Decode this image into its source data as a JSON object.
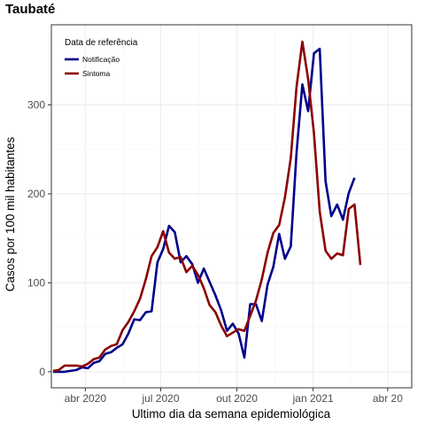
{
  "colors": {
    "notificacao": "#00008B",
    "sintoma": "#8B0000",
    "grid_major": "#EBEBEB",
    "grid_minor": "#F5F5F5",
    "panel_border": "#333333"
  },
  "chart_data": {
    "type": "line",
    "title": "Taubaté",
    "xlabel": "Ultimo dia da semana epidemiológica",
    "ylabel": "Casos por 100 mil habitantes",
    "x_range": [
      "2020-02-20",
      "2021-04-30"
    ],
    "ylim": [
      -18,
      390
    ],
    "grid": true,
    "x_ticks": [
      {
        "date": "2020-04-01",
        "label": "abr 2020"
      },
      {
        "date": "2020-07-01",
        "label": "jul 2020"
      },
      {
        "date": "2020-10-01",
        "label": "out 2020"
      },
      {
        "date": "2021-01-01",
        "label": "jan 2021"
      },
      {
        "date": "2021-04-01",
        "label": "abr 20"
      }
    ],
    "y_ticks": [
      0,
      100,
      200,
      300
    ],
    "legend": {
      "title": "Data de referência",
      "position": "top-left"
    },
    "series": [
      {
        "name": "Notificação",
        "color": "#00008B",
        "points": [
          [
            "2020-02-22",
            0
          ],
          [
            "2020-02-29",
            0
          ],
          [
            "2020-03-07",
            0
          ],
          [
            "2020-03-14",
            1
          ],
          [
            "2020-03-21",
            2
          ],
          [
            "2020-03-28",
            5
          ],
          [
            "2020-04-04",
            4
          ],
          [
            "2020-04-11",
            10
          ],
          [
            "2020-04-18",
            12
          ],
          [
            "2020-04-25",
            20
          ],
          [
            "2020-05-02",
            22
          ],
          [
            "2020-05-09",
            27
          ],
          [
            "2020-05-16",
            31
          ],
          [
            "2020-05-23",
            43
          ],
          [
            "2020-05-30",
            59
          ],
          [
            "2020-06-06",
            58
          ],
          [
            "2020-06-13",
            67
          ],
          [
            "2020-06-20",
            68
          ],
          [
            "2020-06-27",
            123
          ],
          [
            "2020-07-04",
            138
          ],
          [
            "2020-07-11",
            164
          ],
          [
            "2020-07-18",
            157
          ],
          [
            "2020-07-25",
            123
          ],
          [
            "2020-08-01",
            130
          ],
          [
            "2020-08-08",
            121
          ],
          [
            "2020-08-15",
            100
          ],
          [
            "2020-08-22",
            116
          ],
          [
            "2020-08-29",
            101
          ],
          [
            "2020-09-05",
            86
          ],
          [
            "2020-09-12",
            69
          ],
          [
            "2020-09-19",
            46
          ],
          [
            "2020-09-26",
            54
          ],
          [
            "2020-10-03",
            43
          ],
          [
            "2020-10-10",
            16
          ],
          [
            "2020-10-17",
            76
          ],
          [
            "2020-10-24",
            76
          ],
          [
            "2020-10-31",
            57
          ],
          [
            "2020-11-07",
            98
          ],
          [
            "2020-11-14",
            118
          ],
          [
            "2020-11-21",
            155
          ],
          [
            "2020-11-28",
            127
          ],
          [
            "2020-12-05",
            141
          ],
          [
            "2020-12-12",
            246
          ],
          [
            "2020-12-19",
            323
          ],
          [
            "2020-12-26",
            293
          ],
          [
            "2021-01-02",
            358
          ],
          [
            "2021-01-09",
            363
          ],
          [
            "2021-01-16",
            214
          ],
          [
            "2021-01-23",
            175
          ],
          [
            "2021-01-30",
            188
          ],
          [
            "2021-02-06",
            171
          ],
          [
            "2021-02-13",
            201
          ],
          [
            "2021-02-20",
            218
          ]
        ]
      },
      {
        "name": "Sintoma",
        "color": "#8B0000",
        "points": [
          [
            "2020-02-22",
            1
          ],
          [
            "2020-02-29",
            2
          ],
          [
            "2020-03-07",
            7
          ],
          [
            "2020-03-14",
            7
          ],
          [
            "2020-03-21",
            7
          ],
          [
            "2020-03-28",
            6
          ],
          [
            "2020-04-04",
            9
          ],
          [
            "2020-04-11",
            14
          ],
          [
            "2020-04-18",
            16
          ],
          [
            "2020-04-25",
            25
          ],
          [
            "2020-05-02",
            29
          ],
          [
            "2020-05-09",
            31
          ],
          [
            "2020-05-16",
            47
          ],
          [
            "2020-05-23",
            56
          ],
          [
            "2020-05-30",
            68
          ],
          [
            "2020-06-06",
            82
          ],
          [
            "2020-06-13",
            104
          ],
          [
            "2020-06-20",
            130
          ],
          [
            "2020-06-27",
            140
          ],
          [
            "2020-07-04",
            158
          ],
          [
            "2020-07-11",
            134
          ],
          [
            "2020-07-18",
            127
          ],
          [
            "2020-07-25",
            129
          ],
          [
            "2020-08-01",
            112
          ],
          [
            "2020-08-08",
            119
          ],
          [
            "2020-08-15",
            109
          ],
          [
            "2020-08-22",
            94
          ],
          [
            "2020-08-29",
            75
          ],
          [
            "2020-09-05",
            67
          ],
          [
            "2020-09-12",
            52
          ],
          [
            "2020-09-19",
            40
          ],
          [
            "2020-09-26",
            44
          ],
          [
            "2020-10-03",
            48
          ],
          [
            "2020-10-10",
            46
          ],
          [
            "2020-10-17",
            63
          ],
          [
            "2020-10-24",
            80
          ],
          [
            "2020-10-31",
            104
          ],
          [
            "2020-11-07",
            134
          ],
          [
            "2020-11-14",
            156
          ],
          [
            "2020-11-21",
            165
          ],
          [
            "2020-11-28",
            196
          ],
          [
            "2020-12-05",
            240
          ],
          [
            "2020-12-12",
            320
          ],
          [
            "2020-12-19",
            371
          ],
          [
            "2020-12-26",
            329
          ],
          [
            "2021-01-02",
            268
          ],
          [
            "2021-01-09",
            180
          ],
          [
            "2021-01-16",
            136
          ],
          [
            "2021-01-23",
            127
          ],
          [
            "2021-01-30",
            133
          ],
          [
            "2021-02-06",
            131
          ],
          [
            "2021-02-13",
            183
          ],
          [
            "2021-02-20",
            188
          ],
          [
            "2021-02-27",
            120
          ]
        ]
      }
    ]
  }
}
